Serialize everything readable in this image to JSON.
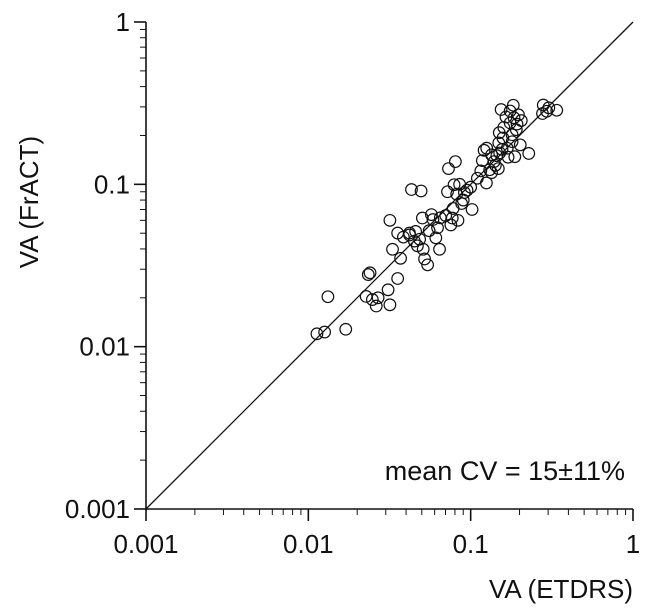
{
  "chart_data": {
    "type": "scatter",
    "title": "",
    "xlabel": "VA (ETDRS)",
    "ylabel": "VA (FrACT)",
    "x_scale": "log",
    "y_scale": "log",
    "xlim": [
      0.001,
      1
    ],
    "ylim": [
      0.001,
      1
    ],
    "x_ticks": [
      0.001,
      0.01,
      0.1,
      1
    ],
    "x_tick_labels": [
      "0.001",
      "0.01",
      "0.1",
      "1"
    ],
    "y_ticks": [
      0.001,
      0.01,
      0.1,
      1
    ],
    "y_tick_labels": [
      "0.001",
      "0.01",
      "0.1",
      "1"
    ],
    "grid": false,
    "reference_line": "identity",
    "marker": "open-circle",
    "annotation": "mean CV = 15±11%",
    "points": [
      [
        0.0113,
        0.012
      ],
      [
        0.0126,
        0.0123
      ],
      [
        0.0132,
        0.0203
      ],
      [
        0.017,
        0.0128
      ],
      [
        0.0227,
        0.0204
      ],
      [
        0.0234,
        0.0278
      ],
      [
        0.024,
        0.0285
      ],
      [
        0.0248,
        0.0195
      ],
      [
        0.0262,
        0.0178
      ],
      [
        0.0269,
        0.02
      ],
      [
        0.031,
        0.0224
      ],
      [
        0.0318,
        0.0181
      ],
      [
        0.0318,
        0.06
      ],
      [
        0.033,
        0.0398
      ],
      [
        0.0355,
        0.0501
      ],
      [
        0.0355,
        0.0263
      ],
      [
        0.037,
        0.035
      ],
      [
        0.0385,
        0.0473
      ],
      [
        0.042,
        0.0488
      ],
      [
        0.042,
        0.0501
      ],
      [
        0.0432,
        0.0929
      ],
      [
        0.045,
        0.0447
      ],
      [
        0.0458,
        0.0513
      ],
      [
        0.047,
        0.0418
      ],
      [
        0.0485,
        0.0459
      ],
      [
        0.0495,
        0.091
      ],
      [
        0.0504,
        0.062
      ],
      [
        0.051,
        0.0398
      ],
      [
        0.052,
        0.0347
      ],
      [
        0.0543,
        0.0319
      ],
      [
        0.0555,
        0.0518
      ],
      [
        0.0573,
        0.0651
      ],
      [
        0.0586,
        0.0607
      ],
      [
        0.061,
        0.0468
      ],
      [
        0.0625,
        0.054
      ],
      [
        0.0643,
        0.0398
      ],
      [
        0.065,
        0.0622
      ],
      [
        0.0702,
        0.0642
      ],
      [
        0.072,
        0.09
      ],
      [
        0.073,
        0.125
      ],
      [
        0.0755,
        0.0562
      ],
      [
        0.077,
        0.062
      ],
      [
        0.078,
        0.071
      ],
      [
        0.079,
        0.0994
      ],
      [
        0.0805,
        0.138
      ],
      [
        0.082,
        0.087
      ],
      [
        0.0835,
        0.06
      ],
      [
        0.0855,
        0.1
      ],
      [
        0.088,
        0.0762
      ],
      [
        0.09,
        0.08
      ],
      [
        0.0915,
        0.089
      ],
      [
        0.095,
        0.092
      ],
      [
        0.1,
        0.096
      ],
      [
        0.102,
        0.07
      ],
      [
        0.11,
        0.109
      ],
      [
        0.1155,
        0.121
      ],
      [
        0.118,
        0.14
      ],
      [
        0.121,
        0.162
      ],
      [
        0.125,
        0.102
      ],
      [
        0.1255,
        0.167
      ],
      [
        0.131,
        0.123
      ],
      [
        0.1345,
        0.118
      ],
      [
        0.1345,
        0.152
      ],
      [
        0.1395,
        0.138
      ],
      [
        0.142,
        0.131
      ],
      [
        0.145,
        0.15
      ],
      [
        0.148,
        0.125
      ],
      [
        0.149,
        0.18
      ],
      [
        0.15,
        0.208
      ],
      [
        0.151,
        0.156
      ],
      [
        0.154,
        0.289
      ],
      [
        0.156,
        0.164
      ],
      [
        0.158,
        0.193
      ],
      [
        0.16,
        0.224
      ],
      [
        0.165,
        0.26
      ],
      [
        0.168,
        0.167
      ],
      [
        0.17,
        0.147
      ],
      [
        0.175,
        0.283
      ],
      [
        0.175,
        0.239
      ],
      [
        0.18,
        0.202
      ],
      [
        0.18,
        0.183
      ],
      [
        0.183,
        0.307
      ],
      [
        0.185,
        0.257
      ],
      [
        0.187,
        0.148
      ],
      [
        0.191,
        0.217
      ],
      [
        0.193,
        0.235
      ],
      [
        0.197,
        0.268
      ],
      [
        0.202,
        0.175
      ],
      [
        0.205,
        0.247
      ],
      [
        0.228,
        0.155
      ],
      [
        0.277,
        0.273
      ],
      [
        0.28,
        0.308
      ],
      [
        0.294,
        0.282
      ],
      [
        0.303,
        0.296
      ],
      [
        0.339,
        0.286
      ]
    ]
  }
}
